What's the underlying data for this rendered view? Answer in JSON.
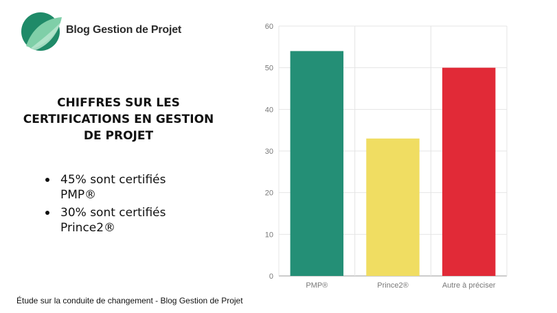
{
  "brand": {
    "name": "Blog Gestion de Projet",
    "colors": {
      "leaf_dark": "#1f8a68",
      "leaf_light": "#7fcfa8"
    }
  },
  "headline": {
    "lines": [
      "CHIFFRES SUR LES",
      "CERTIFICATIONS EN GESTION",
      "DE PROJET"
    ]
  },
  "bullets": [
    {
      "line1": "45% sont certifiés",
      "line2": "PMP®"
    },
    {
      "line1": "30% sont certifiés",
      "line2": "Prince2®"
    }
  ],
  "footer": {
    "source": "Étude sur la conduite de changement - Blog Gestion de Projet"
  },
  "chart_data": {
    "type": "bar",
    "categories": [
      "PMP®",
      "Prince2®",
      "Autre à préciser"
    ],
    "values": [
      54,
      33,
      50
    ],
    "colors": [
      "#248f76",
      "#f0dd62",
      "#e12a37"
    ],
    "ylim": [
      0,
      60
    ],
    "yticks": [
      0,
      10,
      20,
      30,
      40,
      50,
      60
    ],
    "grid": true,
    "title": "",
    "xlabel": "",
    "ylabel": ""
  }
}
